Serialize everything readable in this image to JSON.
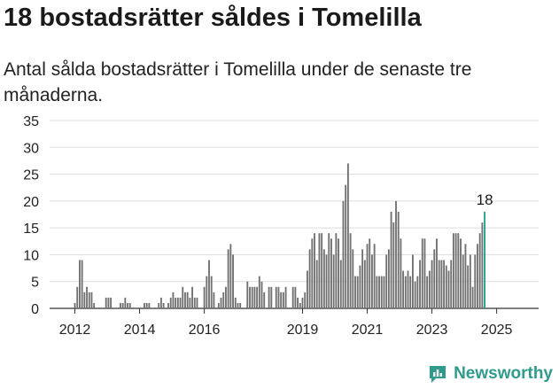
{
  "header": {
    "title": "18 bostadsrätter såldes i Tomelilla",
    "subtitle": "Antal sålda bostadsrätter i Tomelilla under de senaste tre månaderna."
  },
  "branding": {
    "name": "Newsworthy",
    "logo_icon": "newsworthy-chart-logo-icon",
    "color": "#2f9b8d"
  },
  "chart_data": {
    "type": "bar",
    "xlabel": "",
    "ylabel": "",
    "ylim": [
      0,
      35
    ],
    "yticks": [
      0,
      5,
      10,
      15,
      20,
      25,
      30,
      35
    ],
    "xticks": [
      "2012",
      "2014",
      "2016",
      "2019",
      "2021",
      "2023",
      "2025"
    ],
    "grid": true,
    "bar_color": "#707070",
    "highlight_color": "#1f9e94",
    "highlight_label": "18",
    "series": [
      {
        "values": [
          1,
          4,
          9,
          9,
          3,
          4,
          3,
          3,
          1,
          0,
          0,
          0,
          0,
          2,
          2,
          2,
          0,
          0,
          0,
          1,
          1,
          2,
          1,
          1,
          0,
          0,
          0,
          0,
          0,
          1,
          1,
          1,
          0,
          0,
          0,
          1,
          2,
          1,
          0,
          1,
          2,
          3,
          2,
          2,
          2,
          4,
          3,
          3,
          2,
          4,
          2,
          2,
          0,
          0,
          4,
          6,
          9,
          6,
          3,
          0,
          1,
          2,
          3,
          4,
          11,
          12,
          10,
          2,
          1,
          1,
          0,
          0,
          5,
          4,
          4,
          4,
          4,
          6,
          5,
          3,
          0,
          4,
          4,
          0,
          4,
          4,
          3,
          3,
          4,
          0,
          0,
          4,
          4,
          2,
          1,
          2,
          3,
          7,
          11,
          13,
          14,
          9,
          14,
          14,
          11,
          10,
          14,
          13,
          10,
          14,
          13,
          9,
          20,
          23,
          27,
          14,
          11,
          6,
          6,
          8,
          11,
          9,
          12,
          13,
          10,
          12,
          6,
          6,
          6,
          6,
          10,
          11,
          18,
          16,
          20,
          18,
          13,
          7,
          6,
          7,
          6,
          10,
          5,
          6,
          9,
          13,
          13,
          6,
          7,
          9,
          11,
          13,
          9,
          9,
          9,
          8,
          7,
          9,
          14,
          14,
          14,
          13,
          10,
          12,
          8,
          10,
          4,
          10,
          12,
          14,
          16,
          18
        ]
      }
    ]
  }
}
